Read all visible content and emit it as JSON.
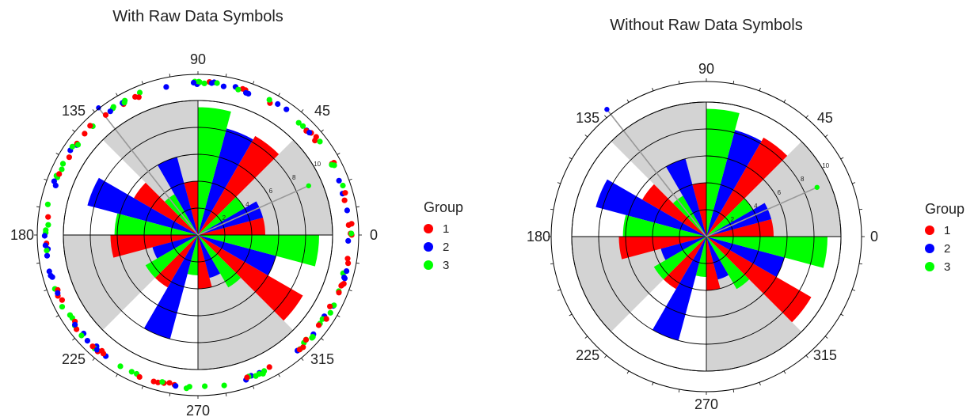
{
  "chart_data": [
    {
      "type": "polar-bar",
      "title": "With Raw Data Symbols",
      "raw_symbols": true,
      "angular_ticks": [
        "0",
        "45",
        "90",
        "135",
        "180",
        "225",
        "270",
        "315"
      ],
      "radial_ticks": [
        "2",
        "4",
        "6",
        "8",
        "10"
      ],
      "rmax": 10,
      "sectors_shaded": [
        0,
        2,
        4,
        6
      ],
      "series": [
        {
          "name": "1",
          "values": [
            5,
            8.5,
            4,
            5.5,
            6.5,
            4.5,
            4,
            9
          ]
        },
        {
          "name": "2",
          "values": [
            5,
            8.2,
            6,
            8.5,
            3.5,
            8,
            3.3,
            6
          ]
        },
        {
          "name": "3",
          "values": [
            4,
            9.5,
            3.5,
            6.2,
            4.5,
            3,
            4.5,
            9
          ]
        }
      ],
      "max_indicators": [
        {
          "group": "2",
          "angle": 128,
          "value": 12
        },
        {
          "group": "3",
          "angle": 24,
          "value": 9
        }
      ]
    },
    {
      "type": "polar-bar",
      "title": "Without Raw Data Symbols",
      "raw_symbols": false,
      "angular_ticks": [
        "0",
        "45",
        "90",
        "135",
        "180",
        "225",
        "270",
        "315"
      ],
      "radial_ticks": [
        "2",
        "4",
        "6",
        "8",
        "10"
      ],
      "rmax": 10,
      "sectors_shaded": [
        0,
        2,
        4,
        6
      ],
      "series": [
        {
          "name": "1",
          "values": [
            5,
            8.5,
            4,
            5.5,
            6.5,
            4.5,
            4,
            9
          ]
        },
        {
          "name": "2",
          "values": [
            5,
            8.2,
            6,
            8.5,
            3.5,
            8,
            3.3,
            6
          ]
        },
        {
          "name": "3",
          "values": [
            4,
            9.5,
            3.5,
            6.2,
            4.5,
            3,
            4.5,
            9
          ]
        }
      ],
      "max_indicators": [
        {
          "group": "2",
          "angle": 128,
          "value": 12
        },
        {
          "group": "3",
          "angle": 24,
          "value": 9
        }
      ]
    }
  ],
  "legend": {
    "title": "Group",
    "items": [
      {
        "label": "1",
        "color": "#ff0000"
      },
      {
        "label": "2",
        "color": "#0000ff"
      },
      {
        "label": "3",
        "color": "#00ff00"
      }
    ]
  },
  "colors": {
    "shade": "#d3d3d3",
    "axis": "#000000"
  }
}
